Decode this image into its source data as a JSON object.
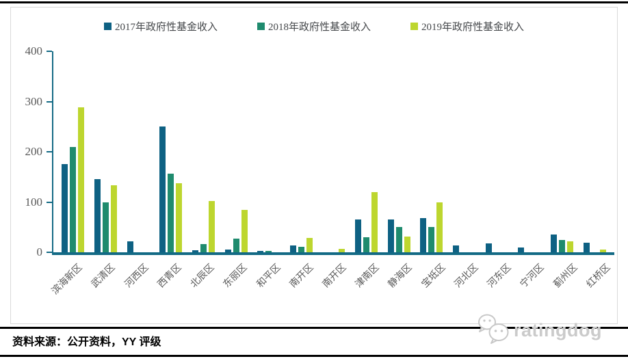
{
  "chart_data": {
    "type": "bar",
    "title": "",
    "xlabel": "",
    "ylabel": "",
    "ylim": [
      0,
      400
    ],
    "yticks": [
      0,
      100,
      200,
      300,
      400
    ],
    "grid": false,
    "legend_position": "top",
    "categories": [
      "滨海新区",
      "武清区",
      "河西区",
      "西青区",
      "北辰区",
      "东丽区",
      "和平区",
      "南开区",
      "南开区",
      "津南区",
      "静海区",
      "宝坻区",
      "河北区",
      "河东区",
      "宁河区",
      "蓟州区",
      "红桥区"
    ],
    "series": [
      {
        "name": "2017年政府性基金收入",
        "color": "#0e6183",
        "values": [
          176,
          146,
          22,
          251,
          4,
          6,
          3,
          14,
          0,
          65,
          65,
          68,
          13,
          18,
          10,
          36,
          19
        ]
      },
      {
        "name": "2018年政府性基金收入",
        "color": "#1f8b6e",
        "values": [
          210,
          100,
          0,
          157,
          17,
          27,
          3,
          11,
          0,
          30,
          50,
          51,
          0,
          0,
          0,
          25,
          0
        ]
      },
      {
        "name": "2019年政府性基金收入",
        "color": "#bdd62f",
        "values": [
          288,
          133,
          0,
          138,
          102,
          85,
          0,
          29,
          7,
          120,
          31,
          100,
          0,
          0,
          0,
          22,
          5
        ]
      }
    ]
  },
  "footer": {
    "source_label": "资料来源：公开资料，YY 评级"
  },
  "logo": {
    "text": "ratingdog"
  },
  "colors": {
    "axis": "#136a85",
    "tick_text": "#595959",
    "panel_border": "#d9d9d9",
    "logo_gray": "#cbcbcb"
  }
}
